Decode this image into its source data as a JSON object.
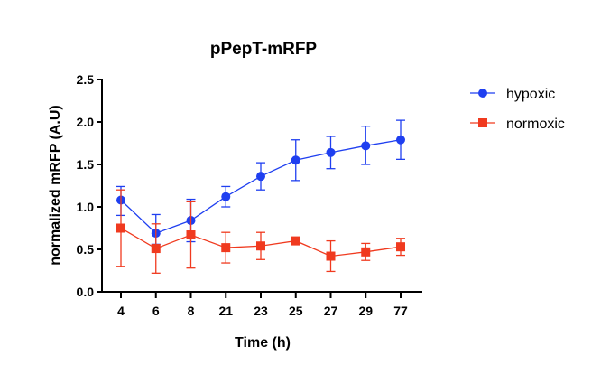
{
  "chart_data": {
    "type": "line",
    "title": "pPepT-mRFP",
    "xlabel": "Time (h)",
    "ylabel": "normalized mRFP (A.U)",
    "categories": [
      "4",
      "6",
      "8",
      "21",
      "23",
      "25",
      "27",
      "29",
      "77"
    ],
    "ylim": [
      0,
      2.5
    ],
    "yticks": [
      "0.0",
      "0.5",
      "1.0",
      "1.5",
      "2.0",
      "2.5"
    ],
    "grid": false,
    "legend": "top-right",
    "series": [
      {
        "name": "hypoxic",
        "color": "#1f3ff0",
        "marker": "circle",
        "values": [
          1.08,
          0.69,
          0.84,
          1.12,
          1.36,
          1.55,
          1.64,
          1.72,
          1.79
        ],
        "err_low": [
          0.18,
          0.13,
          0.25,
          0.12,
          0.16,
          0.24,
          0.19,
          0.22,
          0.23
        ],
        "err_high": [
          0.16,
          0.22,
          0.25,
          0.12,
          0.16,
          0.24,
          0.19,
          0.23,
          0.23
        ]
      },
      {
        "name": "normoxic",
        "color": "#f03a1f",
        "marker": "square",
        "values": [
          0.75,
          0.51,
          0.67,
          0.52,
          0.54,
          0.6,
          0.42,
          0.47,
          0.53
        ],
        "err_low": [
          0.45,
          0.29,
          0.39,
          0.18,
          0.16,
          0.0,
          0.18,
          0.1,
          0.1
        ],
        "err_high": [
          0.45,
          0.29,
          0.39,
          0.18,
          0.16,
          0.0,
          0.18,
          0.1,
          0.1
        ]
      }
    ]
  }
}
